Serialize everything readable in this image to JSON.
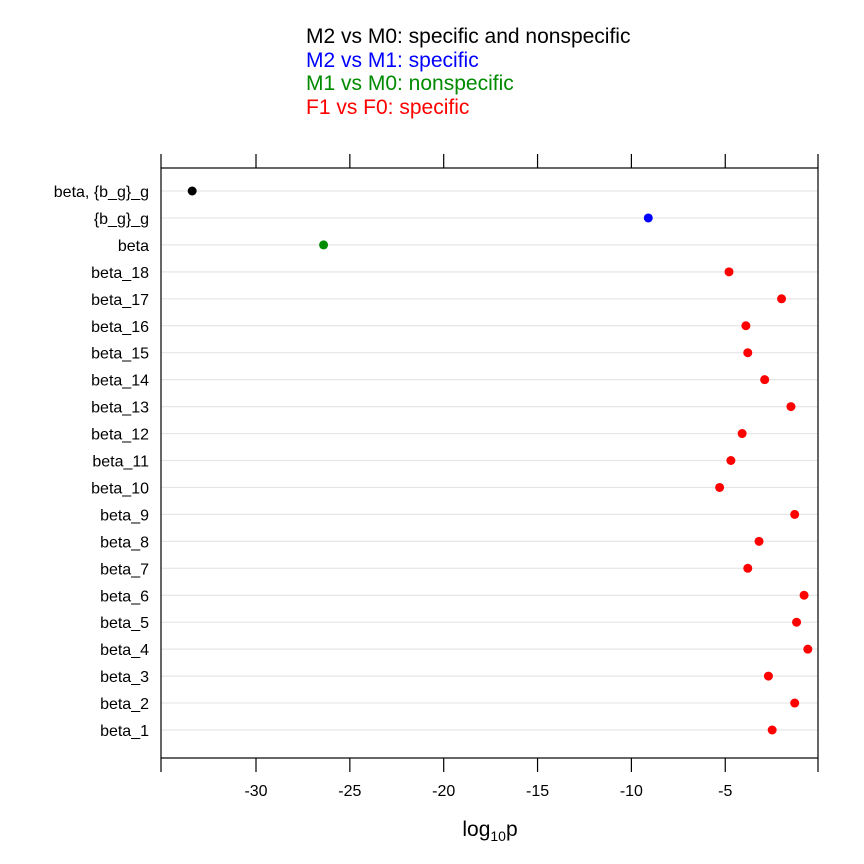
{
  "chart_data": {
    "type": "scatter",
    "title": "",
    "legend": {
      "placement": "top",
      "entries": [
        {
          "label": "M2 vs M0: specific and nonspecific",
          "color": "#000000"
        },
        {
          "label": "M2 vs M1: specific",
          "color": "#0000ff"
        },
        {
          "label": "M1 vs M0: nonspecific",
          "color": "#008b00"
        },
        {
          "label": "F1 vs F0: specific",
          "color": "#ff0000"
        }
      ]
    },
    "xlabel": {
      "base": "log",
      "subscript": "10",
      "suffix": "p"
    },
    "xlim": [
      -35,
      0
    ],
    "xticks": [
      -30,
      -25,
      -20,
      -15,
      -10,
      -5
    ],
    "grid": "horizontal",
    "categories": [
      "beta, {b_g}_g",
      "{b_g}_g",
      "beta",
      "beta_18",
      "beta_17",
      "beta_16",
      "beta_15",
      "beta_14",
      "beta_13",
      "beta_12",
      "beta_11",
      "beta_10",
      "beta_9",
      "beta_8",
      "beta_7",
      "beta_6",
      "beta_5",
      "beta_4",
      "beta_3",
      "beta_2",
      "beta_1"
    ],
    "values": [
      -33.4,
      -9.1,
      -26.4,
      -4.8,
      -2.0,
      -3.9,
      -3.8,
      -2.9,
      -1.5,
      -4.1,
      -4.7,
      -5.3,
      -1.3,
      -3.2,
      -3.8,
      -0.8,
      -1.2,
      -0.6,
      -2.7,
      -1.3,
      -2.5
    ],
    "point_colors": [
      "#000000",
      "#0000ff",
      "#008b00",
      "#ff0000",
      "#ff0000",
      "#ff0000",
      "#ff0000",
      "#ff0000",
      "#ff0000",
      "#ff0000",
      "#ff0000",
      "#ff0000",
      "#ff0000",
      "#ff0000",
      "#ff0000",
      "#ff0000",
      "#ff0000",
      "#ff0000",
      "#ff0000",
      "#ff0000",
      "#ff0000"
    ]
  }
}
